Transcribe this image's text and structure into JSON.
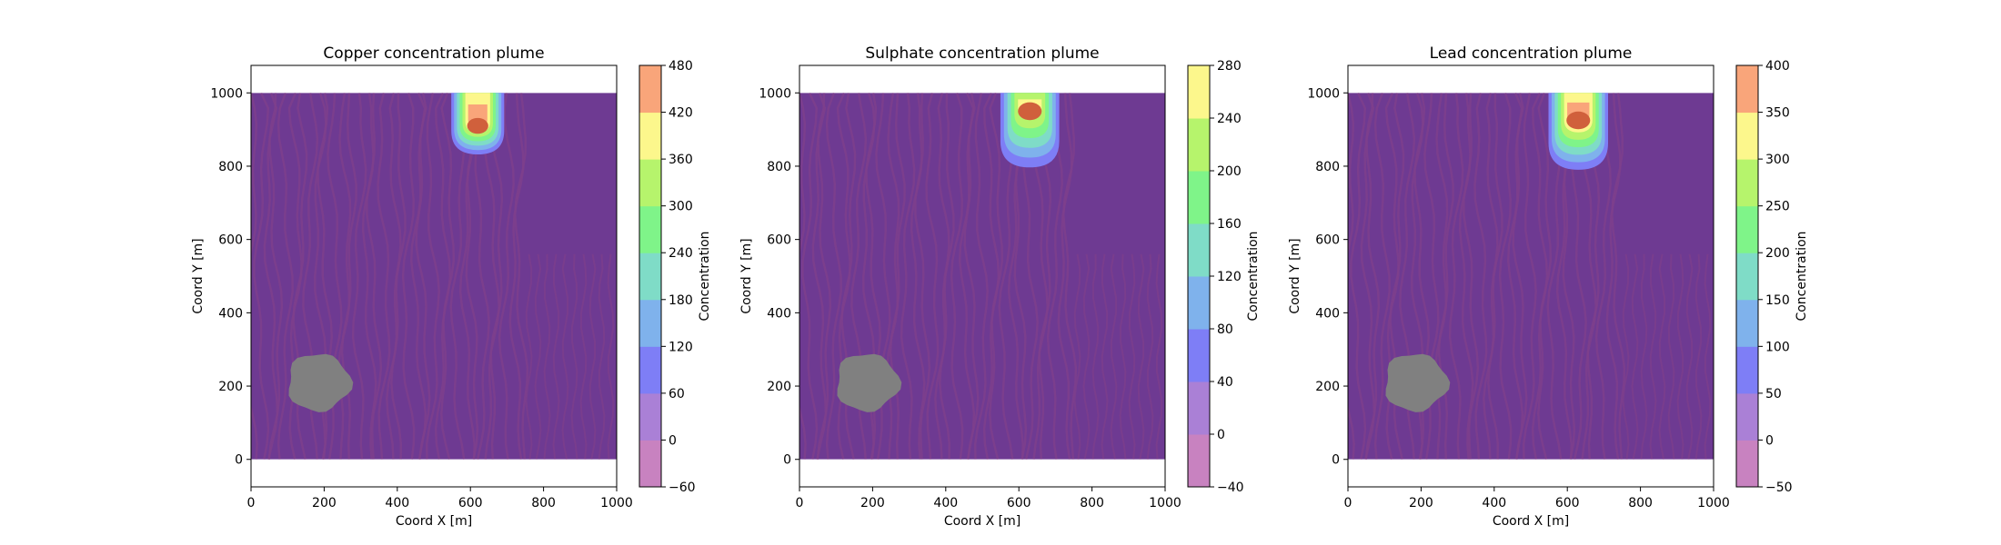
{
  "chart_data": [
    {
      "type": "heatmap",
      "title": "Copper concentration plume",
      "xlabel": "Coord X [m]",
      "ylabel": "Coord Y [m]",
      "xlim": [
        0,
        1000
      ],
      "ylim": [
        -75,
        1075
      ],
      "domain": {
        "x": [
          0,
          1000
        ],
        "y": [
          0,
          1000
        ]
      },
      "xticks": [
        0,
        200,
        400,
        600,
        800,
        1000
      ],
      "yticks": [
        0,
        200,
        400,
        600,
        800,
        1000
      ],
      "colorbar": {
        "label": "Concentration",
        "levels": [
          -60,
          0,
          60,
          120,
          180,
          240,
          300,
          360,
          420,
          480
        ],
        "ticks": [
          -60,
          0,
          60,
          120,
          180,
          240,
          300,
          360,
          420,
          480
        ]
      },
      "plume": {
        "center_x": 620,
        "peak_y": 910,
        "tail_y": 820,
        "half_width": 80,
        "peak": 450
      },
      "inactive_zone": {
        "center_x": 185,
        "center_y": 210,
        "approx_radius": 90
      },
      "background_level": 0
    },
    {
      "type": "heatmap",
      "title": "Sulphate concentration plume",
      "xlabel": "Coord X [m]",
      "ylabel": "Coord Y [m]",
      "xlim": [
        0,
        1000
      ],
      "ylim": [
        -75,
        1075
      ],
      "domain": {
        "x": [
          0,
          1000
        ],
        "y": [
          0,
          1000
        ]
      },
      "xticks": [
        0,
        200,
        400,
        600,
        800,
        1000
      ],
      "yticks": [
        0,
        200,
        400,
        600,
        800,
        1000
      ],
      "colorbar": {
        "label": "Concentration",
        "levels": [
          -40,
          0,
          40,
          80,
          120,
          160,
          200,
          240,
          280
        ],
        "ticks": [
          -40,
          0,
          40,
          80,
          120,
          160,
          200,
          240,
          280
        ]
      },
      "plume": {
        "center_x": 630,
        "peak_y": 950,
        "tail_y": 770,
        "half_width": 90,
        "peak": 270
      },
      "inactive_zone": {
        "center_x": 185,
        "center_y": 210,
        "approx_radius": 90
      },
      "background_level": 0
    },
    {
      "type": "heatmap",
      "title": "Lead concentration plume",
      "xlabel": "Coord X [m]",
      "ylabel": "Coord Y [m]",
      "xlim": [
        0,
        1000
      ],
      "ylim": [
        -75,
        1075
      ],
      "domain": {
        "x": [
          0,
          1000
        ],
        "y": [
          0,
          1000
        ]
      },
      "xticks": [
        0,
        200,
        400,
        600,
        800,
        1000
      ],
      "yticks": [
        0,
        200,
        400,
        600,
        800,
        1000
      ],
      "colorbar": {
        "label": "Concentration",
        "levels": [
          -50,
          0,
          50,
          100,
          150,
          200,
          250,
          300,
          350,
          400
        ],
        "ticks": [
          -50,
          0,
          50,
          100,
          150,
          200,
          250,
          300,
          350,
          400
        ]
      },
      "plume": {
        "center_x": 630,
        "peak_y": 925,
        "tail_y": 770,
        "half_width": 90,
        "peak": 380
      },
      "inactive_zone": {
        "center_x": 185,
        "center_y": 210,
        "approx_radius": 90
      },
      "background_level": 0
    }
  ],
  "palette": {
    "bands": [
      "#c882c0",
      "#aa80d6",
      "#7e7ef6",
      "#7fb2ec",
      "#7fdcc7",
      "#7ff489",
      "#b6f46c",
      "#fcf78c",
      "#f9a57a"
    ],
    "field_base": "#6e3a92",
    "field_stripe": "#7e3f8c",
    "inactive": "#808080"
  }
}
